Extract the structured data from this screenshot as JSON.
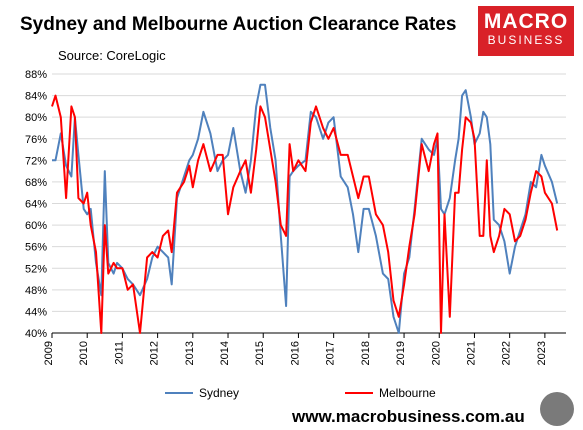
{
  "header": {
    "title": "Sydney and Melbourne Auction Clearance Rates",
    "source": "Source: CoreLogic"
  },
  "logo": {
    "main": "MACRO",
    "sub": "BUSINESS"
  },
  "footer": {
    "url": "www.macrobusiness.com.au"
  },
  "colors": {
    "sydney": "#4f81bd",
    "melbourne": "#ff0000",
    "logo_bg": "#d92128"
  },
  "chart_data": {
    "type": "line",
    "title": "Sydney and Melbourne Auction Clearance Rates",
    "xlabel": "",
    "ylabel": "",
    "ylim": [
      40,
      88
    ],
    "xlim": [
      2009,
      2023.6
    ],
    "grid": true,
    "legend_position": "bottom",
    "y_tick_labels": [
      "40%",
      "44%",
      "48%",
      "52%",
      "56%",
      "60%",
      "64%",
      "68%",
      "72%",
      "76%",
      "80%",
      "84%",
      "88%"
    ],
    "x_tick_labels": [
      "2009",
      "2010",
      "2011",
      "2012",
      "2013",
      "2014",
      "2015",
      "2016",
      "2017",
      "2018",
      "2019",
      "2020",
      "2021",
      "2022",
      "2023"
    ],
    "series": [
      {
        "name": "Sydney",
        "color": "#4f81bd",
        "x": [
          2009.0,
          2009.1,
          2009.25,
          2009.4,
          2009.55,
          2009.65,
          2009.75,
          2009.9,
          2010.0,
          2010.1,
          2010.25,
          2010.4,
          2010.5,
          2010.6,
          2010.75,
          2010.85,
          2011.0,
          2011.15,
          2011.3,
          2011.5,
          2011.7,
          2011.85,
          2012.0,
          2012.15,
          2012.3,
          2012.4,
          2012.55,
          2012.75,
          2012.9,
          2013.0,
          2013.15,
          2013.3,
          2013.5,
          2013.7,
          2013.85,
          2014.0,
          2014.15,
          2014.35,
          2014.5,
          2014.65,
          2014.8,
          2014.92,
          2015.05,
          2015.2,
          2015.35,
          2015.5,
          2015.65,
          2015.75,
          2015.85,
          2016.0,
          2016.2,
          2016.35,
          2016.5,
          2016.7,
          2016.85,
          2017.0,
          2017.2,
          2017.4,
          2017.55,
          2017.7,
          2017.85,
          2018.0,
          2018.2,
          2018.4,
          2018.55,
          2018.7,
          2018.85,
          2019.0,
          2019.15,
          2019.3,
          2019.5,
          2019.7,
          2019.85,
          2019.95,
          2020.05,
          2020.15,
          2020.3,
          2020.45,
          2020.55,
          2020.65,
          2020.75,
          2020.9,
          2021.0,
          2021.15,
          2021.25,
          2021.35,
          2021.45,
          2021.55,
          2021.7,
          2021.85,
          2022.0,
          2022.15,
          2022.3,
          2022.45,
          2022.6,
          2022.75,
          2022.9,
          2023.0,
          2023.2,
          2023.35
        ],
        "y": [
          72,
          72,
          77,
          71,
          69,
          80,
          73,
          63,
          62,
          63,
          53,
          47,
          70,
          53,
          51,
          53,
          52,
          50,
          49,
          47,
          50,
          54,
          56,
          55,
          54,
          49,
          65,
          69,
          72,
          73,
          76,
          81,
          77,
          70,
          72,
          73,
          78,
          70,
          66,
          72,
          82,
          86,
          86,
          78,
          72,
          58,
          45,
          69,
          70,
          71,
          72,
          81,
          80,
          76,
          79,
          80,
          69,
          67,
          62,
          55,
          63,
          63,
          58,
          51,
          50,
          43,
          40,
          51,
          54,
          63,
          76,
          74,
          73,
          76,
          63,
          62,
          65,
          72,
          76,
          84,
          85,
          80,
          75,
          77,
          81,
          80,
          75,
          61,
          60,
          57,
          51,
          56,
          59,
          62,
          68,
          67,
          73,
          71,
          68,
          64
        ]
      },
      {
        "name": "Melbourne",
        "color": "#ff0000",
        "x": [
          2009.0,
          2009.1,
          2009.25,
          2009.4,
          2009.55,
          2009.65,
          2009.75,
          2009.9,
          2010.0,
          2010.1,
          2010.25,
          2010.4,
          2010.5,
          2010.6,
          2010.75,
          2010.85,
          2011.0,
          2011.15,
          2011.3,
          2011.5,
          2011.7,
          2011.85,
          2012.0,
          2012.15,
          2012.3,
          2012.4,
          2012.55,
          2012.75,
          2012.9,
          2013.0,
          2013.15,
          2013.3,
          2013.5,
          2013.7,
          2013.85,
          2014.0,
          2014.15,
          2014.35,
          2014.5,
          2014.65,
          2014.8,
          2014.92,
          2015.05,
          2015.2,
          2015.35,
          2015.5,
          2015.65,
          2015.75,
          2015.85,
          2016.0,
          2016.2,
          2016.35,
          2016.5,
          2016.7,
          2016.85,
          2017.0,
          2017.2,
          2017.4,
          2017.55,
          2017.7,
          2017.85,
          2018.0,
          2018.2,
          2018.4,
          2018.55,
          2018.7,
          2018.85,
          2019.0,
          2019.15,
          2019.3,
          2019.5,
          2019.7,
          2019.85,
          2019.95,
          2020.05,
          2020.15,
          2020.3,
          2020.45,
          2020.55,
          2020.65,
          2020.75,
          2020.9,
          2021.0,
          2021.15,
          2021.25,
          2021.35,
          2021.45,
          2021.55,
          2021.7,
          2021.85,
          2022.0,
          2022.15,
          2022.3,
          2022.45,
          2022.6,
          2022.75,
          2022.9,
          2023.0,
          2023.2,
          2023.35
        ],
        "y": [
          82,
          84,
          80,
          65,
          82,
          80,
          65,
          64,
          66,
          60,
          55,
          40,
          60,
          51,
          53,
          52,
          52,
          48,
          49,
          40,
          54,
          55,
          54,
          58,
          59,
          55,
          66,
          68,
          71,
          67,
          72,
          75,
          70,
          73,
          73,
          62,
          67,
          70,
          72,
          66,
          74,
          82,
          80,
          74,
          68,
          60,
          58,
          75,
          70,
          72,
          70,
          79,
          82,
          78,
          76,
          78,
          73,
          73,
          69,
          65,
          69,
          69,
          62,
          60,
          55,
          46,
          43,
          49,
          56,
          62,
          75,
          70,
          75,
          77,
          40,
          62,
          43,
          66,
          66,
          74,
          80,
          79,
          76,
          58,
          58,
          72,
          58,
          55,
          58,
          63,
          62,
          57,
          58,
          61,
          66,
          70,
          69,
          66,
          64,
          59
        ]
      }
    ]
  }
}
